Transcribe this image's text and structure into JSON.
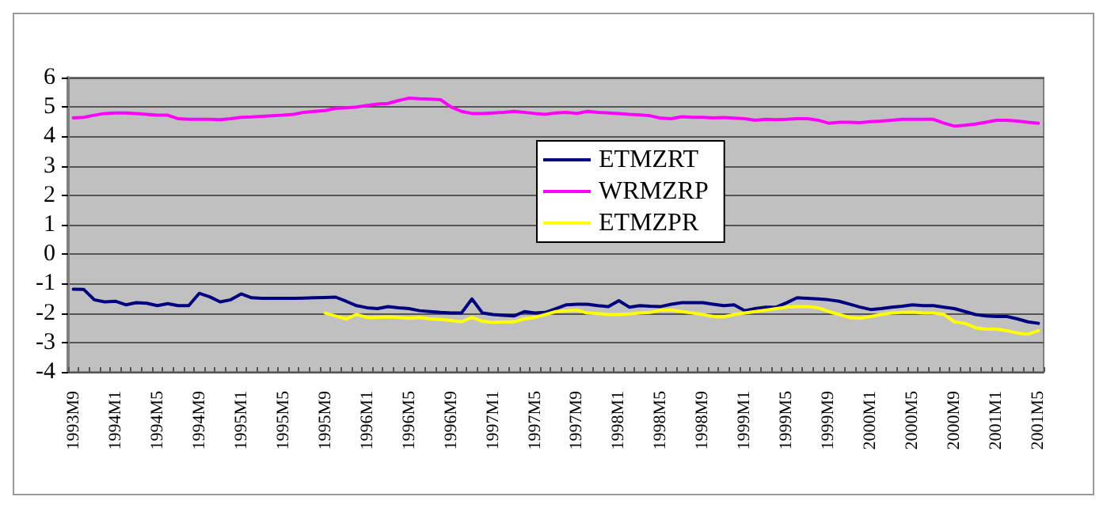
{
  "chart_data": {
    "type": "line",
    "categories": [
      "1993M9",
      null,
      null,
      null,
      "1994M1",
      null,
      null,
      null,
      "1994M5",
      null,
      null,
      null,
      "1994M9",
      null,
      null,
      null,
      "1995M1",
      null,
      null,
      null,
      "1995M5",
      null,
      null,
      null,
      "1995M9",
      null,
      null,
      null,
      "1996M1",
      null,
      null,
      null,
      "1996M5",
      null,
      null,
      null,
      "1996M9",
      null,
      null,
      null,
      "1997M1",
      null,
      null,
      null,
      "1997M5",
      null,
      null,
      null,
      "1997M9",
      null,
      null,
      null,
      "1998M1",
      null,
      null,
      null,
      "1998M5",
      null,
      null,
      null,
      "1998M9",
      null,
      null,
      null,
      "1999M1",
      null,
      null,
      null,
      "1999M5",
      null,
      null,
      null,
      "1999M9",
      null,
      null,
      null,
      "2000M1",
      null,
      null,
      null,
      "2000M5",
      null,
      null,
      null,
      "2000M9",
      null,
      null,
      null,
      "2001M1",
      null,
      null,
      null,
      "2001M5"
    ],
    "series": [
      {
        "name": "ETMZRT",
        "color": "#000080",
        "values": [
          -1.19,
          -1.2,
          -1.55,
          -1.62,
          -1.6,
          -1.72,
          -1.65,
          -1.67,
          -1.75,
          -1.68,
          -1.75,
          -1.75,
          -1.33,
          -1.45,
          -1.62,
          -1.55,
          -1.35,
          -1.48,
          -1.5,
          -1.5,
          -1.5,
          -1.5,
          -1.49,
          -1.48,
          -1.47,
          -1.46,
          -1.6,
          -1.75,
          -1.82,
          -1.85,
          -1.78,
          -1.82,
          -1.85,
          -1.92,
          -1.95,
          -1.98,
          -2.0,
          -2.0,
          -1.52,
          -2.0,
          -2.05,
          -2.08,
          -2.1,
          -1.95,
          -2.0,
          -1.98,
          -1.85,
          -1.72,
          -1.7,
          -1.7,
          -1.75,
          -1.78,
          -1.58,
          -1.8,
          -1.75,
          -1.77,
          -1.78,
          -1.7,
          -1.65,
          -1.65,
          -1.65,
          -1.7,
          -1.75,
          -1.72,
          -1.92,
          -1.85,
          -1.8,
          -1.8,
          -1.65,
          -1.48,
          -1.5,
          -1.52,
          -1.55,
          -1.6,
          -1.7,
          -1.8,
          -1.88,
          -1.85,
          -1.8,
          -1.77,
          -1.72,
          -1.75,
          -1.75,
          -1.8,
          -1.85,
          -1.95,
          -2.05,
          -2.1,
          -2.12,
          -2.12,
          -2.2,
          -2.3,
          -2.35
        ]
      },
      {
        "name": "WRMZRP",
        "color": "#ff00ff",
        "values": [
          4.63,
          4.65,
          4.72,
          4.78,
          4.8,
          4.8,
          4.78,
          4.75,
          4.72,
          4.72,
          4.6,
          4.58,
          4.58,
          4.58,
          4.57,
          4.6,
          4.65,
          4.66,
          4.68,
          4.7,
          4.72,
          4.75,
          4.82,
          4.85,
          4.88,
          4.95,
          4.97,
          5.0,
          5.05,
          5.1,
          5.12,
          5.22,
          5.3,
          5.28,
          5.27,
          5.25,
          5.0,
          4.85,
          4.78,
          4.78,
          4.8,
          4.82,
          4.85,
          4.82,
          4.78,
          4.75,
          4.8,
          4.82,
          4.78,
          4.85,
          4.82,
          4.8,
          4.78,
          4.75,
          4.73,
          4.7,
          4.62,
          4.6,
          4.67,
          4.65,
          4.65,
          4.63,
          4.64,
          4.62,
          4.6,
          4.55,
          4.58,
          4.57,
          4.58,
          4.6,
          4.6,
          4.55,
          4.45,
          4.48,
          4.48,
          4.47,
          4.5,
          4.52,
          4.55,
          4.58,
          4.58,
          4.58,
          4.58,
          4.45,
          4.35,
          4.38,
          4.42,
          4.48,
          4.55,
          4.55,
          4.52,
          4.48,
          4.45
        ]
      },
      {
        "name": "ETMZPR",
        "color": "#ffff00",
        "values": [
          null,
          null,
          null,
          null,
          null,
          null,
          null,
          null,
          null,
          null,
          null,
          null,
          null,
          null,
          null,
          null,
          null,
          null,
          null,
          null,
          null,
          null,
          null,
          null,
          -2.0,
          -2.1,
          -2.2,
          -2.05,
          -2.15,
          -2.15,
          -2.13,
          -2.15,
          -2.18,
          -2.15,
          -2.2,
          -2.22,
          -2.25,
          -2.3,
          -2.15,
          -2.28,
          -2.32,
          -2.3,
          -2.3,
          -2.2,
          -2.15,
          -2.05,
          -1.95,
          -1.92,
          -1.9,
          -2.0,
          -2.02,
          -2.05,
          -2.05,
          -2.03,
          -2.0,
          -1.98,
          -1.9,
          -1.9,
          -1.95,
          -2.0,
          -2.05,
          -2.12,
          -2.13,
          -2.05,
          -2.0,
          -1.95,
          -1.9,
          -1.85,
          -1.8,
          -1.78,
          -1.78,
          -1.82,
          -1.95,
          -2.05,
          -2.15,
          -2.18,
          -2.12,
          -2.05,
          -2.0,
          -1.98,
          -1.97,
          -2.0,
          -2.0,
          -2.05,
          -2.3,
          -2.35,
          -2.5,
          -2.55,
          -2.55,
          -2.6,
          -2.68,
          -2.72,
          -2.6
        ]
      }
    ],
    "ylim": [
      -4,
      6
    ],
    "yticks": [
      -4,
      -3,
      -2,
      -1,
      0,
      1,
      2,
      3,
      4,
      5,
      6
    ],
    "grid": "y",
    "legend": "center",
    "marker": "none",
    "line_style": "solid"
  }
}
